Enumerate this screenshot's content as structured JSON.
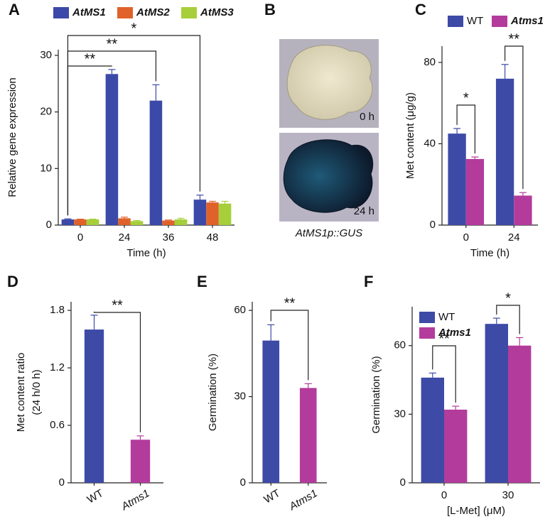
{
  "chart_data": [
    {
      "type": "bar",
      "panel": "A",
      "xlabel": "Time (h)",
      "ylabel": "Relative gene expression",
      "categories": [
        "0",
        "24",
        "36",
        "48"
      ],
      "series": [
        {
          "name": "AtMS1",
          "color": "#3b4aa8",
          "values": [
            1,
            26.7,
            22,
            4.5
          ],
          "errors": [
            0.1,
            0.8,
            2.8,
            0.8
          ]
        },
        {
          "name": "AtMS2",
          "color": "#e0622a",
          "values": [
            1,
            1.2,
            0.8,
            4.0
          ],
          "errors": [
            0.05,
            0.2,
            0.1,
            0.2
          ]
        },
        {
          "name": "AtMS3",
          "color": "#a6cf3a",
          "values": [
            1,
            0.7,
            1.0,
            3.8
          ],
          "errors": [
            0.05,
            0.1,
            0.2,
            0.4
          ]
        }
      ],
      "ylim": [
        0,
        31
      ],
      "yticks": [
        0,
        10,
        20,
        30
      ],
      "grid": false,
      "legend": "top",
      "annotations": [
        "**",
        "**",
        "*"
      ]
    },
    {
      "type": "image",
      "panel": "B",
      "images": [
        {
          "label": "0 h"
        },
        {
          "label": "24 h"
        }
      ],
      "caption": "AtMS1p::GUS"
    },
    {
      "type": "bar",
      "panel": "C",
      "xlabel": "Time (h)",
      "ylabel": "Met content (μg/g)",
      "categories": [
        "0",
        "24"
      ],
      "series": [
        {
          "name": "WT",
          "color": "#3d4aa6",
          "values": [
            45,
            72
          ],
          "errors": [
            2.5,
            7
          ]
        },
        {
          "name": "Atms1",
          "color": "#b33b9c",
          "values": [
            32.5,
            14.5
          ],
          "errors": [
            1,
            1.5
          ]
        }
      ],
      "ylim": [
        0,
        88
      ],
      "yticks": [
        0,
        40,
        80
      ],
      "grid": false,
      "legend": "top",
      "annotations": [
        "*",
        "**"
      ]
    },
    {
      "type": "bar",
      "panel": "D",
      "ylabel": [
        "Met content ratio",
        "(24 h/0 h)"
      ],
      "categories": [
        "WT",
        "Atms1"
      ],
      "values": [
        1.6,
        0.45
      ],
      "errors": [
        0.15,
        0.04
      ],
      "colors": [
        "#3d4aa6",
        "#b33b9c"
      ],
      "ylim": [
        0,
        1.89
      ],
      "yticks": [
        0,
        0.6,
        1.2,
        1.8
      ],
      "grid": false,
      "annotations": [
        "**"
      ]
    },
    {
      "type": "bar",
      "panel": "E",
      "ylabel": "Germination (%)",
      "categories": [
        "WT",
        "Atms1"
      ],
      "values": [
        49.5,
        33
      ],
      "errors": [
        5.5,
        1.5
      ],
      "colors": [
        "#3d4aa6",
        "#b33b9c"
      ],
      "ylim": [
        0,
        63
      ],
      "yticks": [
        0,
        30,
        60
      ],
      "grid": false,
      "annotations": [
        "**"
      ]
    },
    {
      "type": "bar",
      "panel": "F",
      "xlabel": "[L-Met] (μM)",
      "ylabel": "Germination (%)",
      "categories": [
        "0",
        "30"
      ],
      "series": [
        {
          "name": "WT",
          "color": "#3d4aa6",
          "values": [
            46,
            69.5
          ],
          "errors": [
            2,
            2.5
          ]
        },
        {
          "name": "Atms1",
          "color": "#b33b9c",
          "values": [
            32,
            60
          ],
          "errors": [
            1.5,
            3.5
          ]
        }
      ],
      "ylim": [
        0,
        77
      ],
      "yticks": [
        0,
        30,
        60
      ],
      "grid": false,
      "legend": "upper left",
      "annotations": [
        "**",
        "*"
      ]
    }
  ]
}
